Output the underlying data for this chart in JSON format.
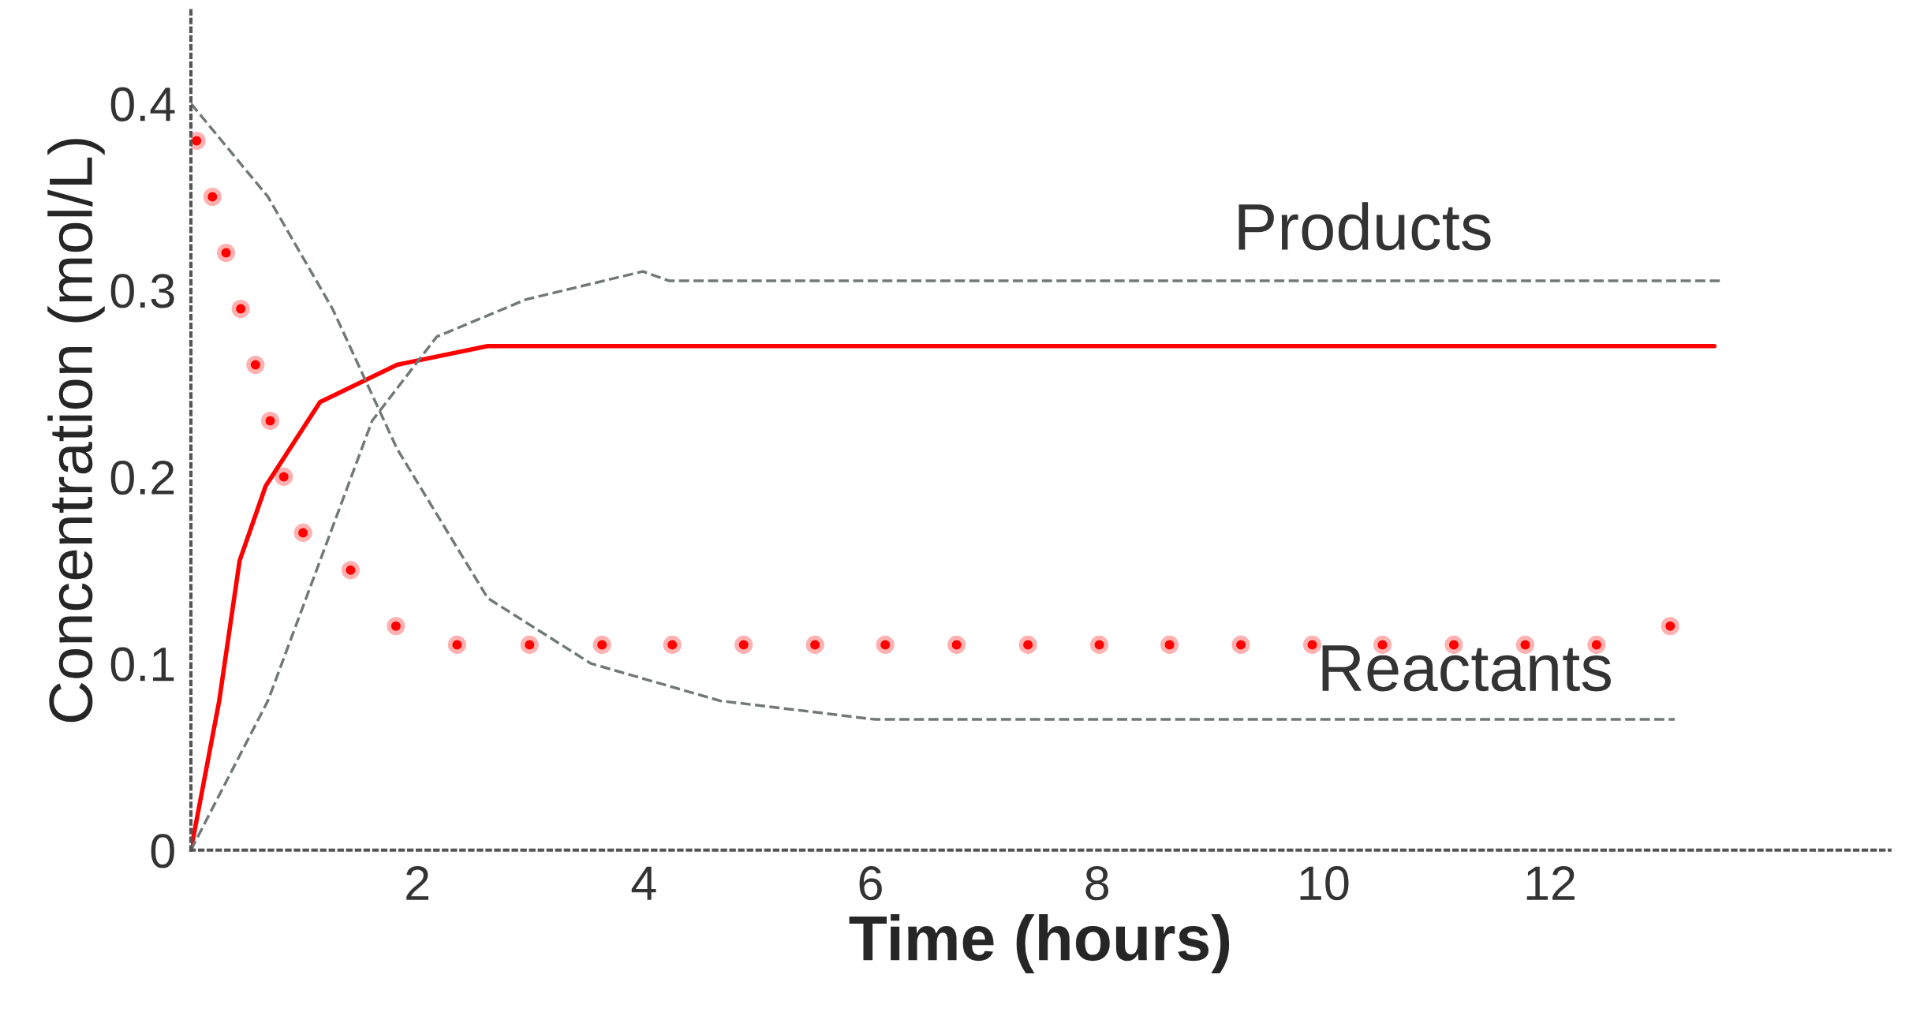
{
  "chart_data": {
    "type": "line",
    "xlabel": "Time (hours)",
    "ylabel": "Concentration (mol/L)",
    "xlim": [
      0,
      15
    ],
    "ylim": [
      0,
      0.45
    ],
    "xticks": [
      2,
      4,
      6,
      8,
      10,
      12
    ],
    "yticks": [
      0,
      0.1,
      0.2,
      0.3,
      0.4
    ],
    "grid": false,
    "legend": false,
    "series": [
      {
        "type": "scatter",
        "marker": "circle",
        "color": "#ff0000",
        "x": [
          0.05,
          0.19,
          0.31,
          0.44,
          0.57,
          0.7,
          0.82,
          0.99,
          1.41,
          1.81,
          2.35,
          2.99,
          3.63,
          4.25,
          4.88,
          5.51,
          6.13,
          6.76,
          7.39,
          8.02,
          8.64,
          9.27,
          9.9,
          10.52,
          11.15,
          11.78,
          12.41,
          13.06
        ],
        "values": [
          0.38,
          0.35,
          0.32,
          0.29,
          0.26,
          0.23,
          0.2,
          0.17,
          0.15,
          0.12,
          0.11,
          0.11,
          0.11,
          0.11,
          0.11,
          0.11,
          0.11,
          0.11,
          0.11,
          0.11,
          0.11,
          0.11,
          0.11,
          0.11,
          0.11,
          0.11,
          0.11,
          0.12
        ]
      },
      {
        "line_style": "solid",
        "color": "#ff0000",
        "x": [
          0,
          0.25,
          0.43,
          0.66,
          1.14,
          1.82,
          2.62,
          13.45
        ],
        "values": [
          0,
          0.08,
          0.155,
          0.195,
          0.24,
          0.26,
          0.27,
          0.27
        ]
      },
      {
        "line_style": "dashed",
        "color": "#707878",
        "x": [
          0,
          0.68,
          1.6,
          2.17,
          2.96,
          3.99,
          4.22,
          13.5
        ],
        "values": [
          0,
          0.08,
          0.23,
          0.275,
          0.295,
          0.31,
          0.305,
          0.305
        ]
      },
      {
        "line_style": "dashed",
        "color": "#707878",
        "x": [
          0,
          0.68,
          1.25,
          1.82,
          2.62,
          3.53,
          4.67,
          6.04,
          13.1
        ],
        "values": [
          0.4,
          0.35,
          0.29,
          0.215,
          0.135,
          0.1,
          0.08,
          0.07,
          0.07
        ]
      }
    ],
    "annotations": [
      "Products",
      "Reactants"
    ]
  }
}
